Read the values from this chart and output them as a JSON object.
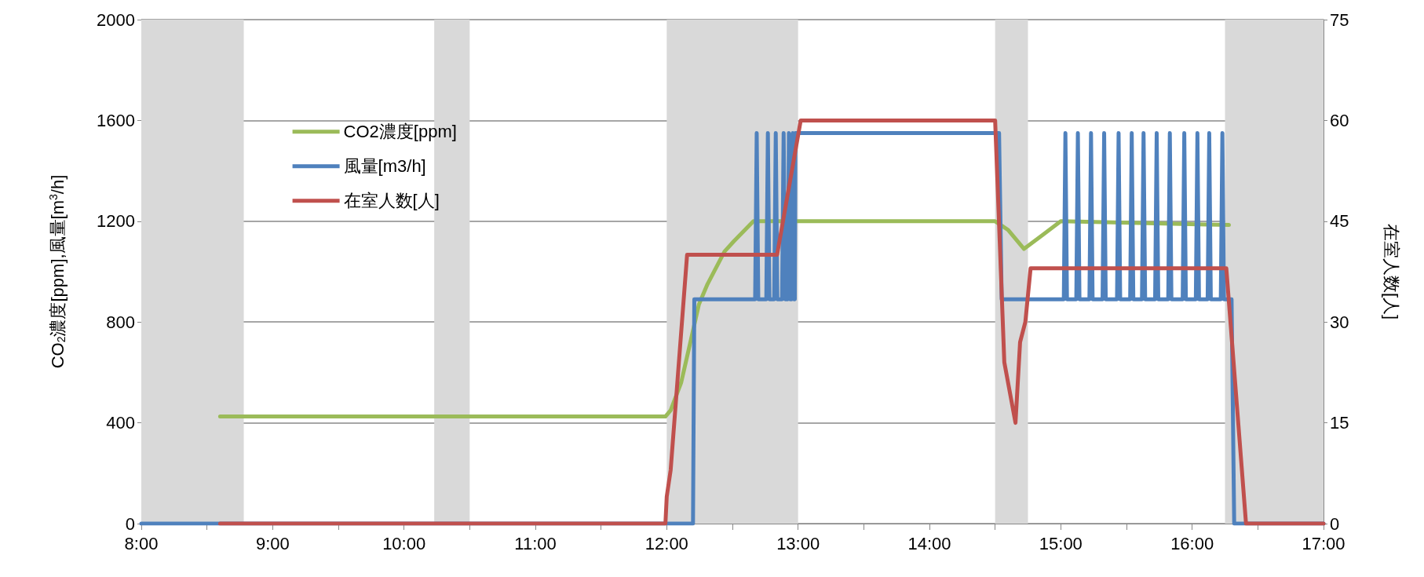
{
  "chart_data": {
    "type": "line",
    "ylabel": "CO$_{2}$濃度[ppm],風量[m$^{3}$/h]",
    "y2label": "在室人数[人]",
    "xlim": [
      8,
      17
    ],
    "xticks": [
      {
        "value": 8,
        "label": "8:00"
      },
      {
        "value": 8.5,
        "label": null
      },
      {
        "value": 9,
        "label": "9:00"
      },
      {
        "value": 9.5,
        "label": null
      },
      {
        "value": 10,
        "label": "10:00"
      },
      {
        "value": 10.5,
        "label": null
      },
      {
        "value": 11,
        "label": "11:00"
      },
      {
        "value": 11.5,
        "label": null
      },
      {
        "value": 12,
        "label": "12:00"
      },
      {
        "value": 12.5,
        "label": null
      },
      {
        "value": 13,
        "label": "13:00"
      },
      {
        "value": 13.5,
        "label": null
      },
      {
        "value": 14,
        "label": "14:00"
      },
      {
        "value": 14.5,
        "label": null
      },
      {
        "value": 15,
        "label": "15:00"
      },
      {
        "value": 15.5,
        "label": null
      },
      {
        "value": 16,
        "label": "16:00"
      },
      {
        "value": 16.5,
        "label": null
      },
      {
        "value": 17,
        "label": "17:00"
      }
    ],
    "ylim": [
      0,
      2000
    ],
    "yticks": [
      0,
      400,
      800,
      1200,
      1600,
      2000
    ],
    "y2lim": [
      0,
      75
    ],
    "y2ticks": [
      0,
      15,
      30,
      45,
      60,
      75
    ],
    "grid": "y",
    "legend": "top left",
    "marker": "none",
    "line_style": "solid",
    "bands": [
      {
        "axis": "x",
        "from": 8,
        "to": 8.78,
        "color": "#d9d9d9"
      },
      {
        "axis": "x",
        "from": 10.23,
        "to": 10.5,
        "color": "#d9d9d9"
      },
      {
        "axis": "x",
        "from": 12,
        "to": 13,
        "color": "#d9d9d9"
      },
      {
        "axis": "x",
        "from": 14.5,
        "to": 14.75,
        "color": "#d9d9d9"
      },
      {
        "axis": "x",
        "from": 16.25,
        "to": 17,
        "color": "#d9d9d9"
      }
    ],
    "series": [
      {
        "name": "CO2濃度[ppm]",
        "color": "#9bbb59",
        "x": [
          8.6,
          11.99,
          12.03,
          12.11,
          12.18,
          12.245,
          12.31,
          12.44,
          12.51,
          12.66,
          13.0,
          14.5,
          14.6,
          14.72,
          14.86,
          15.0,
          16.28
        ],
        "values": [
          425,
          425,
          450,
          560,
          720,
          870,
          950,
          1080,
          1120,
          1200,
          1200,
          1200,
          1165,
          1090,
          1145,
          1200,
          1185
        ]
      },
      {
        "name": "風量[m3/h]",
        "color": "#4f81bd",
        "x": [
          8,
          12.2,
          12.21,
          12.673,
          12.685,
          12.697,
          12.758,
          12.77,
          12.782,
          12.818,
          12.83,
          12.842,
          12.878,
          12.89,
          12.902,
          12.922,
          12.93,
          12.938,
          12.952,
          12.96,
          12.968,
          12.975,
          12.98,
          14.53,
          14.55,
          15.023,
          15.035,
          15.047,
          15.118,
          15.13,
          15.142,
          15.218,
          15.23,
          15.242,
          15.318,
          15.33,
          15.342,
          15.428,
          15.44,
          15.452,
          15.528,
          15.54,
          15.552,
          15.618,
          15.63,
          15.642,
          15.718,
          15.73,
          15.742,
          15.818,
          15.83,
          15.842,
          15.928,
          15.94,
          15.952,
          16.028,
          16.04,
          16.052,
          16.118,
          16.13,
          16.142,
          16.218,
          16.23,
          16.242,
          16.3,
          16.32,
          17
        ],
        "values": [
          0,
          0,
          890,
          890,
          1550,
          890,
          890,
          1550,
          890,
          890,
          1550,
          890,
          890,
          1550,
          890,
          890,
          1550,
          890,
          890,
          1550,
          890,
          890,
          1550,
          1550,
          890,
          890,
          1550,
          890,
          890,
          1550,
          890,
          890,
          1550,
          890,
          890,
          1550,
          890,
          890,
          1550,
          890,
          890,
          1550,
          890,
          890,
          1550,
          890,
          890,
          1550,
          890,
          890,
          1550,
          890,
          890,
          1550,
          890,
          890,
          1550,
          890,
          890,
          1550,
          890,
          890,
          1550,
          890,
          890,
          0,
          0
        ]
      },
      {
        "name": "在室人数[人]",
        "color": "#c0504d",
        "axis": "y2",
        "x": [
          8.6,
          11.99,
          12.0,
          12.03,
          12.155,
          12.84,
          12.93,
          13.02,
          14.5,
          14.57,
          14.655,
          14.69,
          14.73,
          14.77,
          16.26,
          16.41,
          17
        ],
        "values": [
          0,
          0,
          4,
          8,
          40,
          40,
          50,
          60,
          60,
          24,
          15,
          27,
          30,
          38,
          38,
          0,
          0
        ]
      }
    ]
  }
}
